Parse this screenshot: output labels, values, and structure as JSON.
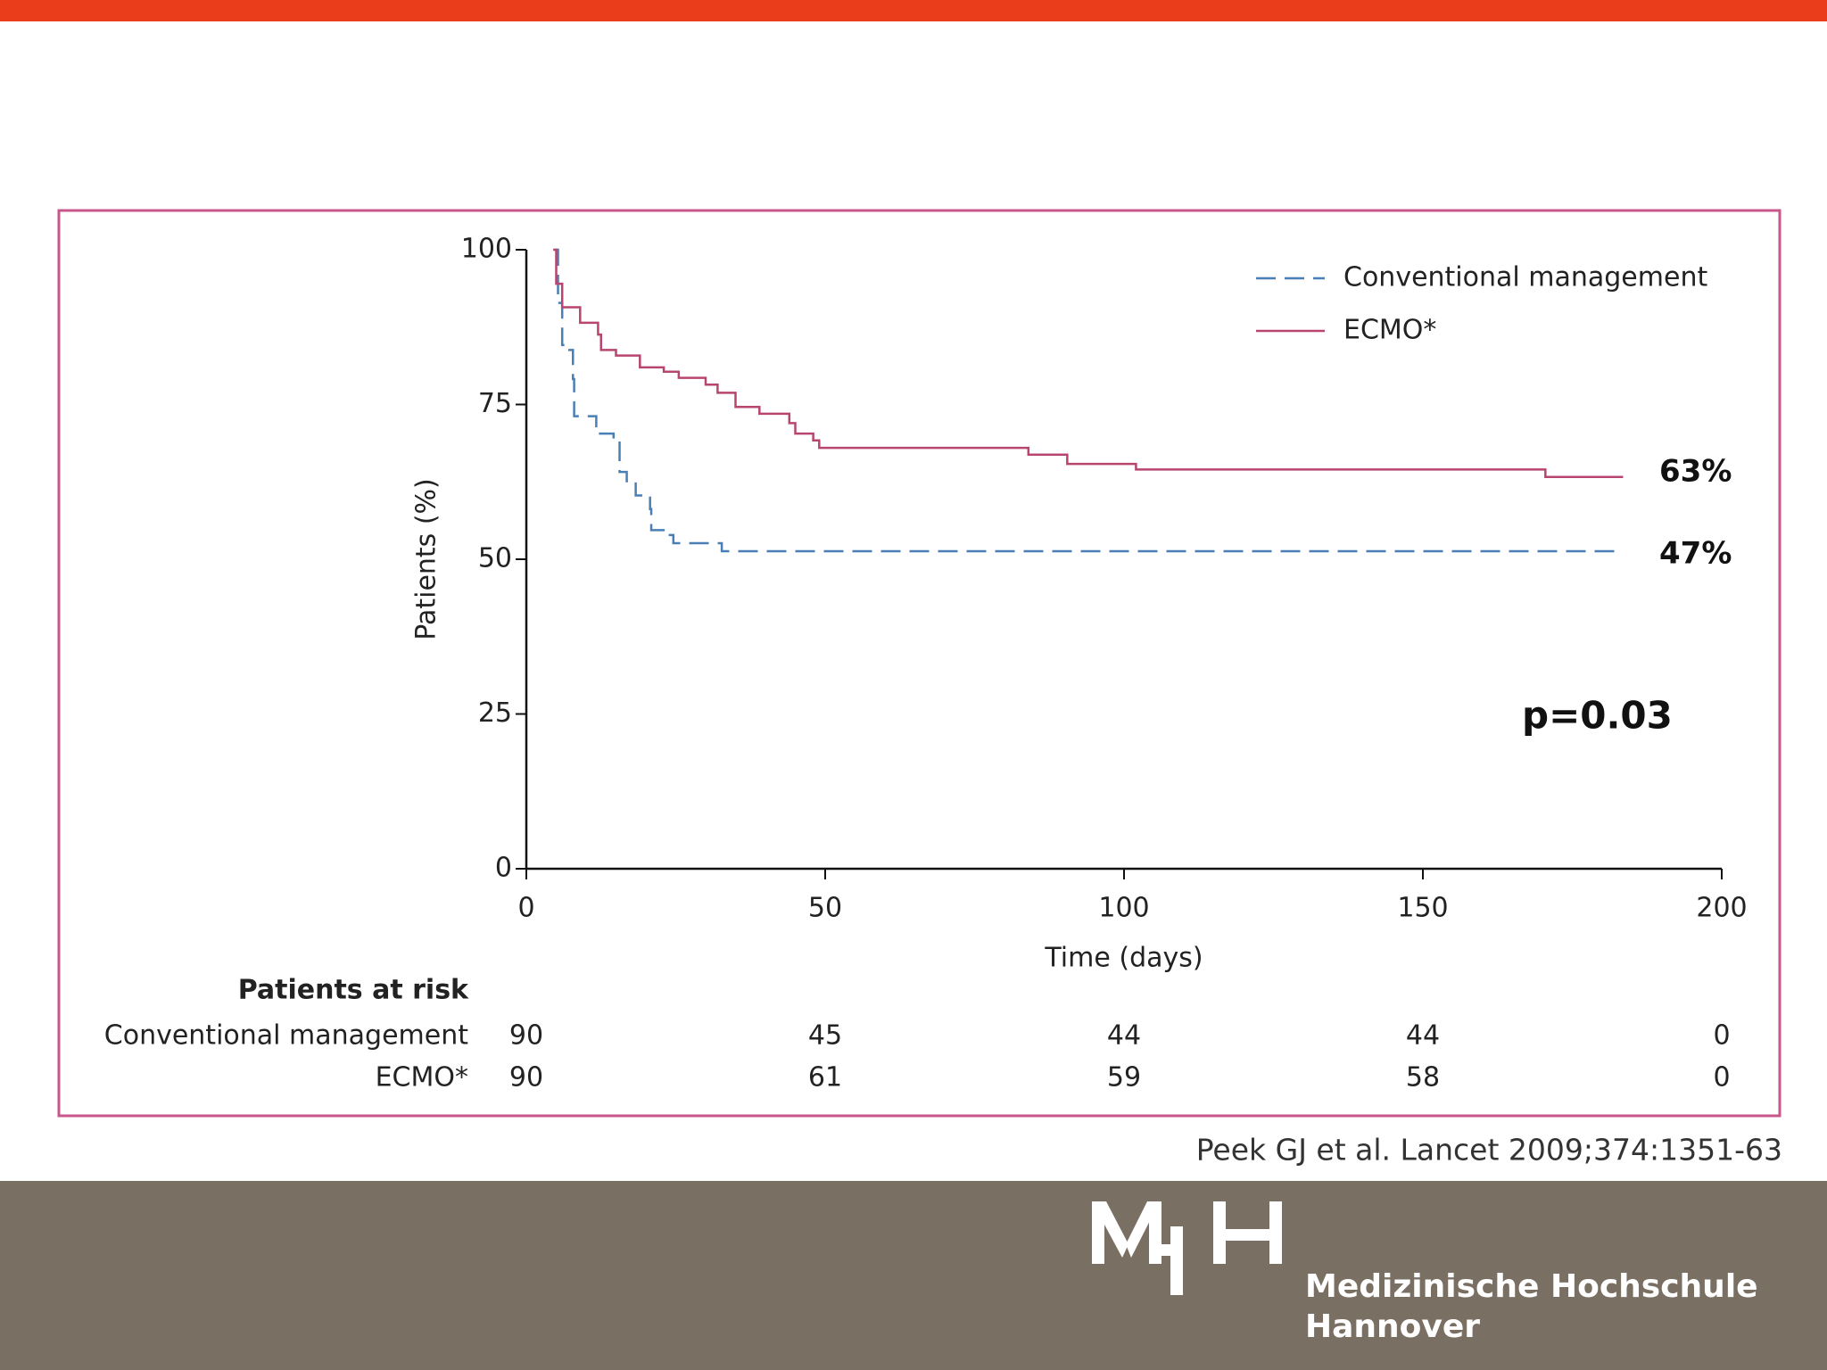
{
  "chart_data": {
    "type": "step",
    "xlabel": "Time (days)",
    "ylabel": "Patients (%)",
    "xlim": [
      0,
      200
    ],
    "xticks": [
      0,
      50,
      100,
      150,
      200
    ],
    "ylim": [
      0,
      100
    ],
    "yticks": [
      0,
      25,
      50,
      75,
      100
    ],
    "series": [
      {
        "name": "Conventional management",
        "color": "#4a7fb5",
        "dashed": true,
        "x": [
          4.7,
          5.3,
          6,
          7.2,
          7.8,
          8,
          11.7,
          14.6,
          15.6,
          16.8,
          18.3,
          20.7,
          20.9,
          23.4,
          24.6,
          32.7,
          183.5
        ],
        "values": [
          100,
          91.4,
          84.6,
          83.8,
          79.1,
          73.1,
          70.3,
          69.4,
          64.1,
          62.6,
          60.3,
          58.1,
          54.7,
          53.9,
          52.6,
          51.3,
          51.3
        ]
      },
      {
        "name": "ECMO*",
        "color": "#b8456f",
        "dashed": false,
        "x": [
          4.5,
          5,
          6,
          9,
          12,
          12.5,
          15,
          19,
          23,
          25.5,
          30,
          32,
          35,
          39,
          44,
          45,
          48,
          49,
          84,
          90.5,
          102,
          170.5,
          183.5
        ],
        "values": [
          100,
          94.5,
          90.7,
          88.2,
          86.3,
          83.8,
          82.9,
          81,
          80.3,
          79.3,
          78.2,
          76.9,
          74.6,
          73.5,
          72,
          70.3,
          69.2,
          68,
          66.9,
          65.4,
          64.5,
          63.3,
          63.3
        ]
      }
    ],
    "annotations": [
      "63%",
      "47%",
      "p=0.03"
    ],
    "risk_table": {
      "title": "Patients at risk",
      "rows": [
        {
          "name": "Conventional management",
          "values": [
            90,
            45,
            44,
            44,
            0
          ]
        },
        {
          "name": "ECMO*",
          "values": [
            90,
            61,
            59,
            58,
            0
          ]
        }
      ]
    }
  },
  "citation": "Peek GJ et al. Lancet 2009;374:1351-63",
  "footer": {
    "institution": [
      "Medizinische Hochschule",
      "Hannover"
    ]
  }
}
